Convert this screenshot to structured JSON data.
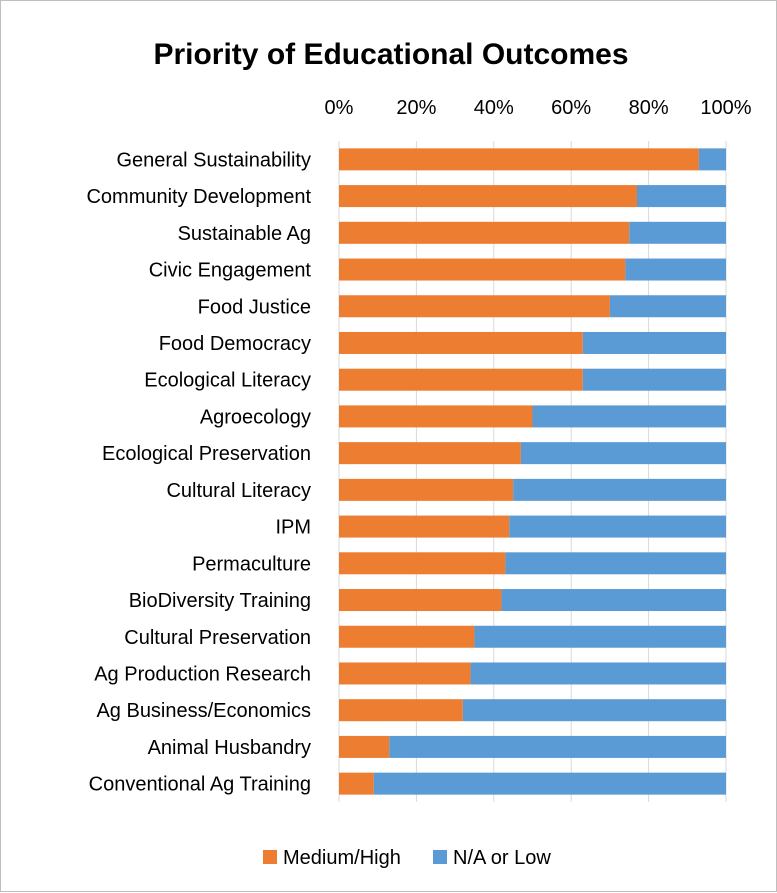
{
  "chart_data": {
    "type": "bar",
    "orientation": "horizontal",
    "stacked": "100%",
    "title": "Priority of Educational Outcomes",
    "xlabel": "",
    "ylabel": "",
    "xlim": [
      0,
      100
    ],
    "x_ticks": [
      "0%",
      "20%",
      "40%",
      "60%",
      "80%",
      "100%"
    ],
    "x_axis_position": "top",
    "grid": true,
    "legend_position": "bottom",
    "categories": [
      "General Sustainability",
      "Community Development",
      "Sustainable Ag",
      "Civic Engagement",
      "Food Justice",
      "Food Democracy",
      "Ecological Literacy",
      "Agroecology",
      "Ecological Preservation",
      "Cultural Literacy",
      "IPM",
      "Permaculture",
      "BioDiversity Training",
      "Cultural Preservation",
      "Ag Production Research",
      "Ag Business/Economics",
      "Animal Husbandry",
      "Conventional Ag Training"
    ],
    "series": [
      {
        "name": "Medium/High",
        "color": "#ed7d31",
        "values": [
          93,
          77,
          75,
          74,
          70,
          63,
          63,
          50,
          47,
          45,
          44,
          43,
          42,
          35,
          34,
          32,
          13,
          9
        ]
      },
      {
        "name": "N/A or Low",
        "color": "#5b9bd5",
        "values": [
          7,
          23,
          25,
          26,
          30,
          37,
          37,
          50,
          53,
          55,
          56,
          57,
          58,
          65,
          66,
          68,
          87,
          91
        ]
      }
    ]
  }
}
